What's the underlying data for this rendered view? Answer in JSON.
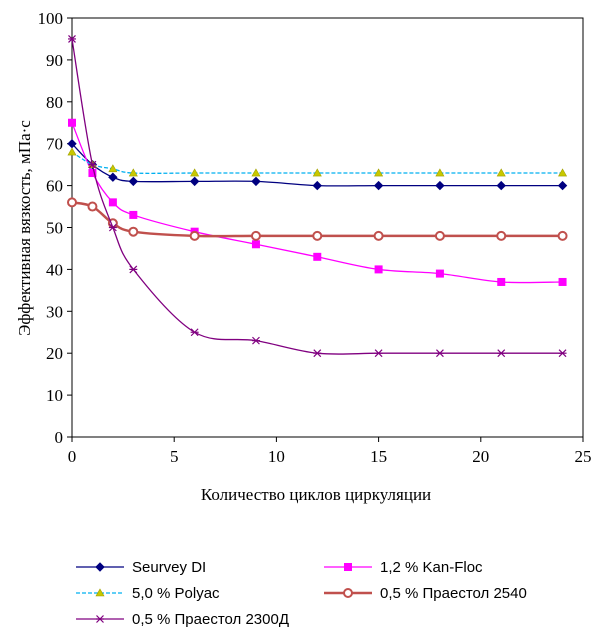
{
  "chart_data": {
    "type": "line",
    "title": "",
    "xlabel": "Количество циклов циркуляции",
    "ylabel": "Эффективная вязкость, мПа·с",
    "xlim": [
      0,
      25
    ],
    "ylim": [
      0,
      100
    ],
    "x_ticks": [
      "0",
      "5",
      "10",
      "15",
      "20",
      "25"
    ],
    "y_ticks": [
      "0",
      "10",
      "20",
      "30",
      "40",
      "50",
      "60",
      "70",
      "80",
      "90",
      "100"
    ],
    "grid": false,
    "legend_position": "bottom",
    "series": [
      {
        "name": "Seurvey DI",
        "color": "#000080",
        "marker": "diamond",
        "x": [
          0,
          1,
          2,
          3,
          6,
          9,
          12,
          15,
          18,
          21,
          24
        ],
        "y": [
          70,
          65,
          62,
          61,
          61,
          61,
          60,
          60,
          60,
          60,
          60
        ]
      },
      {
        "name": "1,2 % Kan-Floc",
        "color": "#ff00ff",
        "marker": "square",
        "x": [
          0,
          1,
          2,
          3,
          6,
          9,
          12,
          15,
          18,
          21,
          24
        ],
        "y": [
          75,
          63,
          56,
          53,
          49,
          46,
          43,
          40,
          39,
          37,
          37
        ]
      },
      {
        "name": "5,0 % Polyac",
        "color": "#00b0f0",
        "marker": "triangle",
        "x": [
          0,
          1,
          2,
          3,
          6,
          9,
          12,
          15,
          18,
          21,
          24
        ],
        "y": [
          68,
          65,
          64,
          63,
          63,
          63,
          63,
          63,
          63,
          63,
          63
        ]
      },
      {
        "name": "0,5 % Праестол 2540",
        "color": "#c0504d",
        "marker": "circle",
        "x": [
          0,
          1,
          2,
          3,
          6,
          9,
          12,
          15,
          18,
          21,
          24
        ],
        "y": [
          56,
          55,
          51,
          49,
          48,
          48,
          48,
          48,
          48,
          48,
          48
        ]
      },
      {
        "name": "0,5 % Праестол 2300Д",
        "color": "#800080",
        "marker": "star",
        "x": [
          0,
          1,
          2,
          3,
          6,
          9,
          12,
          15,
          18,
          21,
          24
        ],
        "y": [
          95,
          65,
          50,
          40,
          25,
          23,
          20,
          20,
          20,
          20,
          20
        ]
      }
    ]
  }
}
